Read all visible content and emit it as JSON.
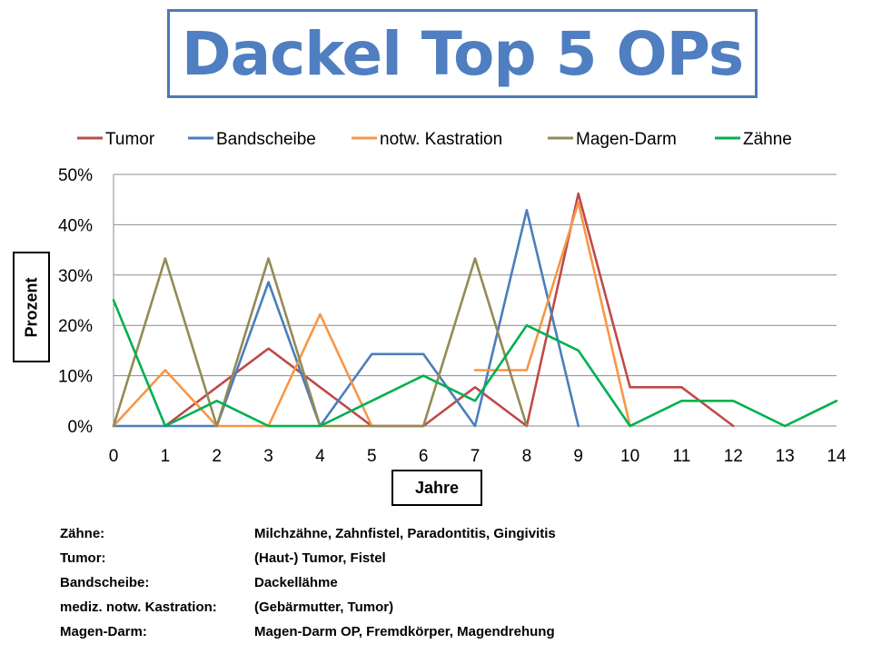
{
  "title": "Dackel Top 5 OPs",
  "chart_data": {
    "type": "line",
    "x": [
      0,
      1,
      2,
      3,
      4,
      5,
      6,
      7,
      8,
      9,
      10,
      11,
      12,
      13,
      14
    ],
    "xlabel": "Jahre",
    "ylabel": "Prozent",
    "ylim": [
      0,
      50
    ],
    "yticks": [
      "0%",
      "10%",
      "20%",
      "30%",
      "40%",
      "50%"
    ],
    "xticks": [
      "0",
      "1",
      "2",
      "3",
      "4",
      "5",
      "6",
      "7",
      "8",
      "9",
      "10",
      "11",
      "12",
      "13",
      "14"
    ],
    "grid": true,
    "legend_position": "top",
    "series": [
      {
        "name": "Tumor",
        "color": "#be4b48",
        "values": [
          null,
          0,
          7.7,
          15.4,
          7.7,
          0,
          0,
          7.7,
          0,
          46.2,
          7.7,
          7.7,
          0,
          null,
          null
        ]
      },
      {
        "name": "Bandscheibe",
        "color": "#4a7ebb",
        "values": [
          0,
          0,
          0,
          28.6,
          0,
          14.3,
          14.3,
          0,
          42.9,
          0,
          null,
          null,
          null,
          null,
          null
        ]
      },
      {
        "name": "notw. Kastration",
        "color": "#f79646",
        "values": [
          0,
          11.1,
          0,
          0,
          22.2,
          0,
          null,
          11.1,
          11.1,
          44.4,
          0,
          null,
          null,
          null,
          null
        ]
      },
      {
        "name": "Magen-Darm",
        "color": "#948a54",
        "values": [
          0,
          33.3,
          0,
          33.3,
          0,
          0,
          0,
          33.3,
          0,
          null,
          null,
          null,
          null,
          null,
          null
        ]
      },
      {
        "name": "Zähne",
        "color": "#00b050",
        "values": [
          25,
          0,
          5,
          0,
          0,
          5,
          10,
          5,
          20,
          15,
          0,
          5,
          5,
          0,
          5
        ]
      }
    ]
  },
  "notes": [
    {
      "key": "Zähne:",
      "value": "Milchzähne, Zahnfistel, Paradontitis, Gingivitis"
    },
    {
      "key": "Tumor:",
      "value": "(Haut-) Tumor, Fistel"
    },
    {
      "key": "Bandscheibe:",
      "value": "Dackellähme"
    },
    {
      "key": "mediz. notw. Kastration:",
      "value": "(Gebärmutter, Tumor)"
    },
    {
      "key": "Magen-Darm:",
      "value": "Magen-Darm OP, Fremdkörper, Magendrehung"
    }
  ]
}
